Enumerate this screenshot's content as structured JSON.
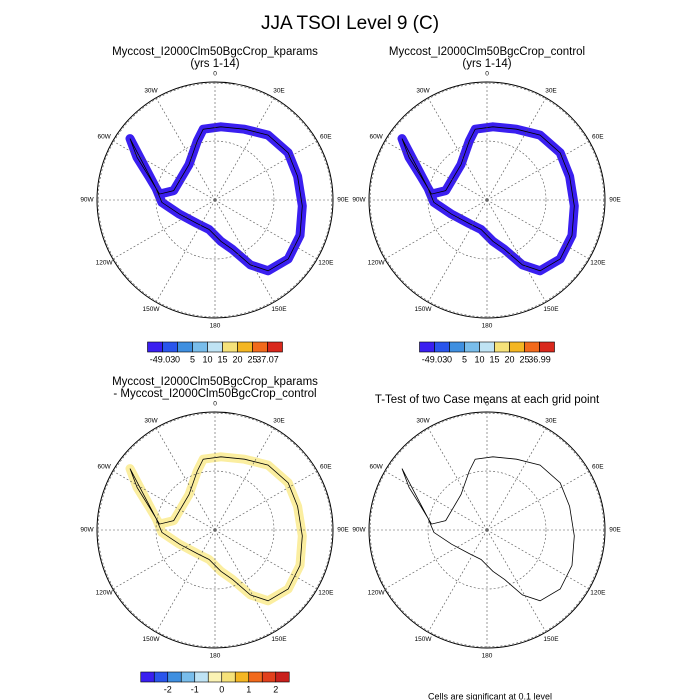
{
  "title": "JJA TSOI Level 9 (C)",
  "longitude_labels": [
    "0",
    "30E",
    "60E",
    "90E",
    "120E",
    "150E",
    "180",
    "150W",
    "120W",
    "90W",
    "60W",
    "30W"
  ],
  "panels": [
    {
      "title": [
        "Myccost_I2000Clm50BgcCrop_kparams",
        "(yrs 1-14)"
      ],
      "fill": "#3a1ff0",
      "colorbar": {
        "colors": [
          "#3a1ff0",
          "#2a55ec",
          "#3f8fe0",
          "#79bdeb",
          "#bfe3f4",
          "#f6e27a",
          "#f4b623",
          "#f26a1c",
          "#d9281c"
        ],
        "labels": [
          "-49.03",
          "0",
          "5",
          "10",
          "15",
          "20",
          "25",
          "37.07"
        ]
      }
    },
    {
      "title": [
        "Myccost_I2000Clm50BgcCrop_control",
        "(yrs 1-14)"
      ],
      "fill": "#3a1ff0",
      "colorbar": {
        "colors": [
          "#3a1ff0",
          "#2a55ec",
          "#3f8fe0",
          "#79bdeb",
          "#bfe3f4",
          "#f6e27a",
          "#f4b623",
          "#f26a1c",
          "#d9281c"
        ],
        "labels": [
          "-49.03",
          "0",
          "5",
          "10",
          "15",
          "20",
          "25",
          "36.99"
        ]
      }
    },
    {
      "title": [
        "Myccost_I2000Clm50BgcCrop_kparams",
        "- Myccost_I2000Clm50BgcCrop_control"
      ],
      "fill": "#fbeea0",
      "colorbar": {
        "colors": [
          "#3a1ff0",
          "#2a55ec",
          "#3f8fe0",
          "#79bdeb",
          "#bfe3f4",
          "#fbf3b4",
          "#f6e27a",
          "#f4b623",
          "#f26a1c",
          "#e2401c",
          "#c9201c"
        ],
        "labels": [
          "-2",
          "-1",
          "0",
          "1",
          "2"
        ]
      }
    },
    {
      "title": [
        "T-Test of two Case means at each grid point"
      ]
    }
  ],
  "footnote": "Cells are significant at 0.1 level"
}
